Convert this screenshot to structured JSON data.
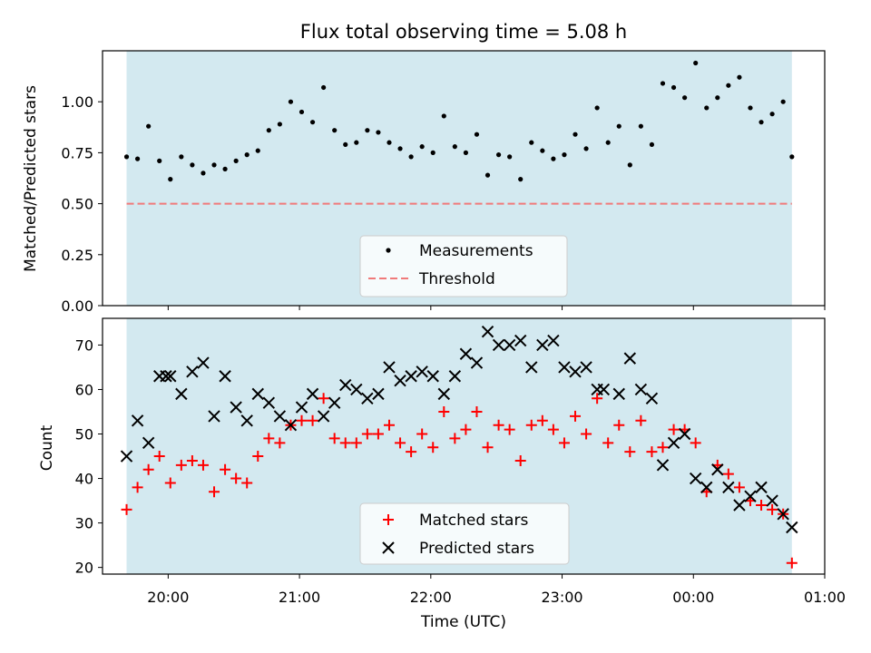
{
  "chart_data": [
    {
      "type": "scatter",
      "title": "Flux total observing time = 5.08 h",
      "xlabel": "",
      "ylabel": "Matched/Predicted stars",
      "ylim": [
        0,
        1.25
      ],
      "yticks": [
        "0.00",
        "0.25",
        "0.50",
        "0.75",
        "1.00"
      ],
      "xlim": [
        "19:30",
        "01:00"
      ],
      "shaded_span": [
        "19:41",
        "00:45"
      ],
      "shade_color": "#d3e9f0",
      "legend_loc": "lower center",
      "threshold": 0.5,
      "series": [
        {
          "name": "Measurements",
          "marker": "dot",
          "color": "#000000",
          "x": [
            "19:41",
            "19:46",
            "19:51",
            "19:56",
            "20:01",
            "20:06",
            "20:11",
            "20:16",
            "20:21",
            "20:26",
            "20:31",
            "20:36",
            "20:41",
            "20:46",
            "20:51",
            "20:56",
            "21:01",
            "21:06",
            "21:11",
            "21:16",
            "21:21",
            "21:26",
            "21:31",
            "21:36",
            "21:41",
            "21:46",
            "21:51",
            "21:56",
            "22:01",
            "22:06",
            "22:11",
            "22:16",
            "22:21",
            "22:26",
            "22:31",
            "22:36",
            "22:41",
            "22:46",
            "22:51",
            "22:56",
            "23:01",
            "23:06",
            "23:11",
            "23:16",
            "23:21",
            "23:26",
            "23:31",
            "23:36",
            "23:41",
            "23:46",
            "23:51",
            "23:56",
            "00:01",
            "00:06",
            "00:11",
            "00:16",
            "00:21",
            "00:26",
            "00:31",
            "00:36",
            "00:41",
            "00:45"
          ],
          "y": [
            0.73,
            0.72,
            0.88,
            0.71,
            0.62,
            0.73,
            0.69,
            0.65,
            0.69,
            0.67,
            0.71,
            0.74,
            0.76,
            0.86,
            0.89,
            1.0,
            0.95,
            0.9,
            1.07,
            0.86,
            0.79,
            0.8,
            0.86,
            0.85,
            0.8,
            0.77,
            0.73,
            0.78,
            0.75,
            0.93,
            0.78,
            0.75,
            0.84,
            0.64,
            0.74,
            0.73,
            0.62,
            0.8,
            0.76,
            0.72,
            0.74,
            0.84,
            0.77,
            0.97,
            0.8,
            0.88,
            0.69,
            0.88,
            0.79,
            1.09,
            1.07,
            1.02,
            1.19,
            0.97,
            1.02,
            1.08,
            1.12,
            0.97,
            0.9,
            0.94,
            1.0,
            0.73
          ]
        },
        {
          "name": "Threshold",
          "marker": "dashed-line",
          "color": "#f07a7a"
        }
      ]
    },
    {
      "type": "scatter",
      "xlabel": "Time (UTC)",
      "ylabel": "Count",
      "ylim": [
        18.5,
        76
      ],
      "yticks": [
        "20",
        "30",
        "40",
        "50",
        "60",
        "70"
      ],
      "xticks": [
        "20:00",
        "21:00",
        "22:00",
        "23:00",
        "00:00",
        "01:00"
      ],
      "xlim": [
        "19:30",
        "01:00"
      ],
      "shaded_span": [
        "19:41",
        "00:45"
      ],
      "legend_loc": "lower center",
      "series": [
        {
          "name": "Matched stars",
          "marker": "plus",
          "color": "#ff0000",
          "x": [
            "19:41",
            "19:46",
            "19:51",
            "19:56",
            "20:01",
            "20:06",
            "20:11",
            "20:16",
            "20:21",
            "20:26",
            "20:31",
            "20:36",
            "20:41",
            "20:46",
            "20:51",
            "20:56",
            "21:01",
            "21:06",
            "21:11",
            "21:16",
            "21:21",
            "21:26",
            "21:31",
            "21:36",
            "21:41",
            "21:46",
            "21:51",
            "21:56",
            "22:01",
            "22:06",
            "22:11",
            "22:16",
            "22:21",
            "22:26",
            "22:31",
            "22:36",
            "22:41",
            "22:46",
            "22:51",
            "22:56",
            "23:01",
            "23:06",
            "23:11",
            "23:16",
            "23:21",
            "23:26",
            "23:31",
            "23:36",
            "23:41",
            "23:46",
            "23:51",
            "23:56",
            "00:01",
            "00:06",
            "00:11",
            "00:16",
            "00:21",
            "00:26",
            "00:31",
            "00:36",
            "00:41",
            "00:45"
          ],
          "y": [
            33,
            38,
            42,
            45,
            39,
            43,
            44,
            43,
            37,
            42,
            40,
            39,
            45,
            49,
            48,
            52,
            53,
            53,
            58,
            49,
            48,
            48,
            50,
            50,
            52,
            48,
            46,
            50,
            47,
            55,
            49,
            51,
            55,
            47,
            52,
            51,
            44,
            52,
            53,
            51,
            48,
            54,
            50,
            58,
            48,
            52,
            46,
            53,
            46,
            47,
            51,
            51,
            48,
            37,
            43,
            41,
            38,
            35,
            34,
            33,
            32,
            21
          ]
        },
        {
          "name": "Predicted stars",
          "marker": "x",
          "color": "#000000",
          "x": [
            "19:41",
            "19:46",
            "19:51",
            "19:56",
            "19:59",
            "20:01",
            "20:06",
            "20:11",
            "20:16",
            "20:21",
            "20:26",
            "20:31",
            "20:36",
            "20:41",
            "20:46",
            "20:51",
            "20:56",
            "21:01",
            "21:06",
            "21:11",
            "21:16",
            "21:21",
            "21:26",
            "21:31",
            "21:36",
            "21:41",
            "21:46",
            "21:51",
            "21:56",
            "22:01",
            "22:06",
            "22:11",
            "22:16",
            "22:21",
            "22:26",
            "22:31",
            "22:36",
            "22:41",
            "22:46",
            "22:51",
            "22:56",
            "23:01",
            "23:06",
            "23:11",
            "23:16",
            "23:19",
            "23:26",
            "23:31",
            "23:36",
            "23:41",
            "23:46",
            "23:51",
            "23:56",
            "00:01",
            "00:06",
            "00:11",
            "00:16",
            "00:21",
            "00:26",
            "00:31",
            "00:36",
            "00:41",
            "00:45"
          ],
          "y": [
            45,
            53,
            48,
            63,
            63,
            63,
            59,
            64,
            66,
            54,
            63,
            56,
            53,
            59,
            57,
            54,
            52,
            56,
            59,
            54,
            57,
            61,
            60,
            58,
            59,
            65,
            62,
            63,
            64,
            63,
            59,
            63,
            68,
            66,
            73,
            70,
            70,
            71,
            65,
            70,
            71,
            65,
            64,
            65,
            60,
            60,
            59,
            67,
            60,
            58,
            43,
            48,
            50,
            40,
            38,
            42,
            38,
            34,
            36,
            38,
            35,
            32,
            29
          ]
        }
      ]
    }
  ]
}
